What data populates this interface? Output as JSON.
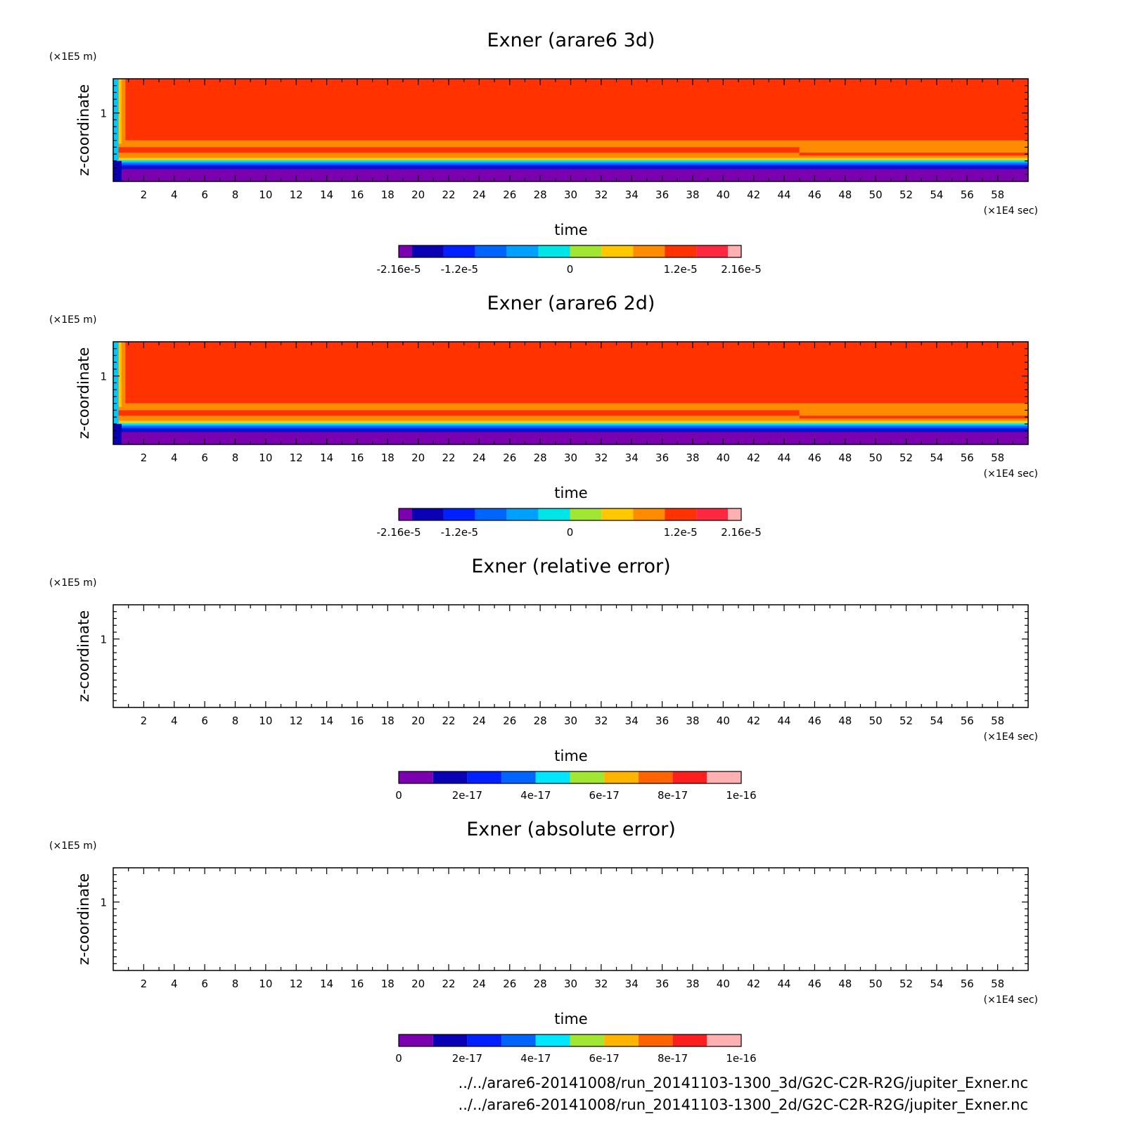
{
  "chart_data": [
    {
      "type": "heatmap",
      "title": "Exner (arare6 3d)",
      "xlabel": "time",
      "xunit": "(×1E4 sec)",
      "ylabel": "z-coordinate",
      "yunit": "(×1E5 m)",
      "xlim": [
        0,
        60
      ],
      "ylim": [
        0,
        1.5
      ],
      "x_ticks": [
        "2",
        "4",
        "6",
        "8",
        "10",
        "12",
        "14",
        "16",
        "18",
        "20",
        "22",
        "24",
        "26",
        "28",
        "30",
        "32",
        "34",
        "36",
        "38",
        "40",
        "42",
        "44",
        "46",
        "48",
        "50",
        "52",
        "54",
        "56",
        "58"
      ],
      "y_ticks": [
        "1"
      ],
      "field": "filled",
      "colorbar": {
        "colors": [
          "#7a00b0",
          "#0a00b4",
          "#0020ff",
          "#0064ff",
          "#00a0ff",
          "#00e6e6",
          "#a0e632",
          "#ffc800",
          "#ff8c00",
          "#ff3200",
          "#ff2840",
          "#ffb0b0"
        ],
        "labels": [
          "-2.16e-5",
          "-1.2e-5",
          "0",
          "1.2e-5",
          "2.16e-5"
        ]
      }
    },
    {
      "type": "heatmap",
      "title": "Exner (arare6 2d)",
      "xlabel": "time",
      "xunit": "(×1E4 sec)",
      "ylabel": "z-coordinate",
      "yunit": "(×1E5 m)",
      "xlim": [
        0,
        60
      ],
      "ylim": [
        0,
        1.5
      ],
      "x_ticks": [
        "2",
        "4",
        "6",
        "8",
        "10",
        "12",
        "14",
        "16",
        "18",
        "20",
        "22",
        "24",
        "26",
        "28",
        "30",
        "32",
        "34",
        "36",
        "38",
        "40",
        "42",
        "44",
        "46",
        "48",
        "50",
        "52",
        "54",
        "56",
        "58"
      ],
      "y_ticks": [
        "1"
      ],
      "field": "filled",
      "colorbar": {
        "colors": [
          "#7a00b0",
          "#0a00b4",
          "#0020ff",
          "#0064ff",
          "#00a0ff",
          "#00e6e6",
          "#a0e632",
          "#ffc800",
          "#ff8c00",
          "#ff3200",
          "#ff2840",
          "#ffb0b0"
        ],
        "labels": [
          "-2.16e-5",
          "-1.2e-5",
          "0",
          "1.2e-5",
          "2.16e-5"
        ]
      }
    },
    {
      "type": "heatmap",
      "title": "Exner (relative error)",
      "xlabel": "time",
      "xunit": "(×1E4 sec)",
      "ylabel": "z-coordinate",
      "yunit": "(×1E5 m)",
      "xlim": [
        0,
        60
      ],
      "ylim": [
        0,
        1.5
      ],
      "x_ticks": [
        "2",
        "4",
        "6",
        "8",
        "10",
        "12",
        "14",
        "16",
        "18",
        "20",
        "22",
        "24",
        "26",
        "28",
        "30",
        "32",
        "34",
        "36",
        "38",
        "40",
        "42",
        "44",
        "46",
        "48",
        "50",
        "52",
        "54",
        "56",
        "58"
      ],
      "y_ticks": [
        "1"
      ],
      "field": "empty",
      "colorbar": {
        "colors": [
          "#7a00b0",
          "#0a00b4",
          "#0020ff",
          "#0064ff",
          "#00e6ff",
          "#a0e632",
          "#ffb400",
          "#ff6400",
          "#ff1e1e",
          "#ffb0b0"
        ],
        "labels": [
          "0",
          "2e-17",
          "4e-17",
          "6e-17",
          "8e-17",
          "1e-16"
        ]
      }
    },
    {
      "type": "heatmap",
      "title": "Exner (absolute error)",
      "xlabel": "time",
      "xunit": "(×1E4 sec)",
      "ylabel": "z-coordinate",
      "yunit": "(×1E5 m)",
      "xlim": [
        0,
        60
      ],
      "ylim": [
        0,
        1.5
      ],
      "x_ticks": [
        "2",
        "4",
        "6",
        "8",
        "10",
        "12",
        "14",
        "16",
        "18",
        "20",
        "22",
        "24",
        "26",
        "28",
        "30",
        "32",
        "34",
        "36",
        "38",
        "40",
        "42",
        "44",
        "46",
        "48",
        "50",
        "52",
        "54",
        "56",
        "58"
      ],
      "y_ticks": [
        "1"
      ],
      "field": "empty",
      "colorbar": {
        "colors": [
          "#7a00b0",
          "#0a00b4",
          "#0020ff",
          "#0064ff",
          "#00e6ff",
          "#a0e632",
          "#ffb400",
          "#ff6400",
          "#ff1e1e",
          "#ffb0b0"
        ],
        "labels": [
          "0",
          "2e-17",
          "4e-17",
          "6e-17",
          "8e-17",
          "1e-16"
        ]
      }
    }
  ],
  "footer": {
    "line1": "../../arare6-20141008/run_20141103-1300_3d/G2C-C2R-R2G/jupiter_Exner.nc",
    "line2": "../../arare6-20141008/run_20141103-1300_2d/G2C-C2R-R2G/jupiter_Exner.nc"
  }
}
